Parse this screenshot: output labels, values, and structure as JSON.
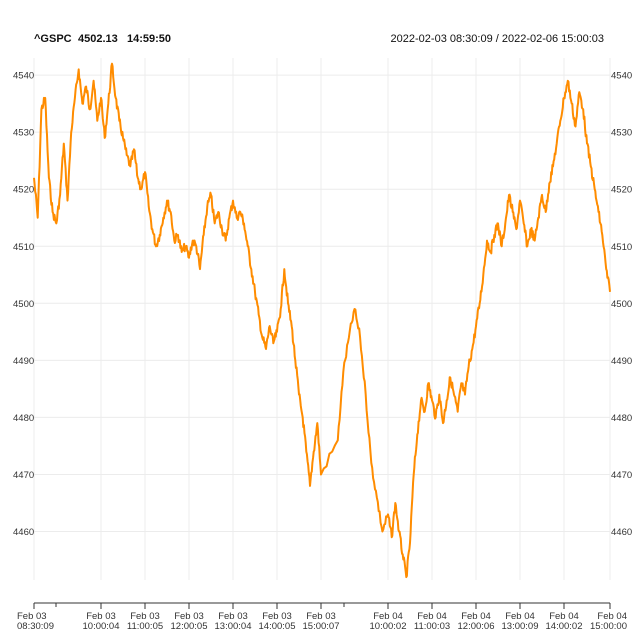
{
  "header": {
    "symbol": "^GSPC",
    "last_price": "4502.13",
    "last_time": "14:59:50",
    "date_range": "2022-02-03 08:30:09 / 2022-02-06 15:00:03"
  },
  "colors": {
    "series": "#ff8c00",
    "grid": "#ececec",
    "text": "#333333"
  },
  "chart_data": {
    "type": "line",
    "ylim": [
      4451.5,
      4543
    ],
    "yticks": [
      4460,
      4470,
      4480,
      4490,
      4500,
      4510,
      4520,
      4530,
      4540
    ],
    "grid": true,
    "xticks": [
      {
        "date": "Feb 03",
        "time": "08:30:09"
      },
      {
        "date": "Feb 03",
        "time": "10:00:04"
      },
      {
        "date": "Feb 03",
        "time": "11:00:05"
      },
      {
        "date": "Feb 03",
        "time": "12:00:05"
      },
      {
        "date": "Feb 03",
        "time": "13:00:04"
      },
      {
        "date": "Feb 03",
        "time": "14:00:05"
      },
      {
        "date": "Feb 03",
        "time": "15:00:07"
      },
      {
        "date": "Feb 04",
        "time": "10:00:02"
      },
      {
        "date": "Feb 04",
        "time": "11:00:03"
      },
      {
        "date": "Feb 04",
        "time": "12:00:06"
      },
      {
        "date": "Feb 04",
        "time": "13:00:09"
      },
      {
        "date": "Feb 04",
        "time": "14:00:02"
      },
      {
        "date": "Feb 04",
        "time": "15:00:00"
      }
    ],
    "series": [
      {
        "color": "#ff8c00",
        "points": [
          [
            "Feb 03 08:30",
            4522
          ],
          [
            "Feb 03 08:35",
            4515
          ],
          [
            "Feb 03 08:40",
            4534
          ],
          [
            "Feb 03 08:45",
            4536
          ],
          [
            "Feb 03 08:50",
            4522
          ],
          [
            "Feb 03 08:55",
            4516
          ],
          [
            "Feb 03 09:00",
            4514
          ],
          [
            "Feb 03 09:05",
            4519
          ],
          [
            "Feb 03 09:10",
            4528
          ],
          [
            "Feb 03 09:15",
            4518
          ],
          [
            "Feb 03 09:20",
            4530
          ],
          [
            "Feb 03 09:25",
            4536
          ],
          [
            "Feb 03 09:30",
            4541
          ],
          [
            "Feb 03 09:35",
            4535
          ],
          [
            "Feb 03 09:40",
            4538
          ],
          [
            "Feb 03 09:45",
            4534
          ],
          [
            "Feb 03 09:50",
            4539
          ],
          [
            "Feb 03 09:55",
            4532
          ],
          [
            "Feb 03 10:00",
            4536
          ],
          [
            "Feb 03 10:05",
            4529
          ],
          [
            "Feb 03 10:10",
            4535
          ],
          [
            "Feb 03 10:15",
            4542
          ],
          [
            "Feb 03 10:20",
            4536
          ],
          [
            "Feb 03 10:25",
            4532
          ],
          [
            "Feb 03 10:30",
            4529
          ],
          [
            "Feb 03 10:35",
            4526
          ],
          [
            "Feb 03 10:40",
            4524
          ],
          [
            "Feb 03 10:45",
            4527
          ],
          [
            "Feb 03 10:50",
            4522
          ],
          [
            "Feb 03 10:55",
            4520
          ],
          [
            "Feb 03 11:00",
            4523
          ],
          [
            "Feb 03 11:05",
            4517
          ],
          [
            "Feb 03 11:10",
            4513
          ],
          [
            "Feb 03 11:15",
            4510
          ],
          [
            "Feb 03 11:20",
            4512
          ],
          [
            "Feb 03 11:25",
            4515
          ],
          [
            "Feb 03 11:30",
            4518
          ],
          [
            "Feb 03 11:35",
            4516
          ],
          [
            "Feb 03 11:40",
            4511
          ],
          [
            "Feb 03 11:45",
            4512
          ],
          [
            "Feb 03 11:50",
            4509
          ],
          [
            "Feb 03 11:55",
            4510
          ],
          [
            "Feb 03 12:00",
            4508
          ],
          [
            "Feb 03 12:05",
            4511
          ],
          [
            "Feb 03 12:10",
            4510
          ],
          [
            "Feb 03 12:15",
            4506
          ],
          [
            "Feb 03 12:20",
            4512
          ],
          [
            "Feb 03 12:25",
            4517
          ],
          [
            "Feb 03 12:30",
            4519
          ],
          [
            "Feb 03 12:35",
            4514
          ],
          [
            "Feb 03 12:40",
            4516
          ],
          [
            "Feb 03 12:45",
            4513
          ],
          [
            "Feb 03 12:50",
            4511
          ],
          [
            "Feb 03 12:55",
            4515
          ],
          [
            "Feb 03 13:00",
            4518
          ],
          [
            "Feb 03 13:05",
            4515
          ],
          [
            "Feb 03 13:10",
            4516
          ],
          [
            "Feb 03 13:15",
            4514
          ],
          [
            "Feb 03 13:20",
            4510
          ],
          [
            "Feb 03 13:25",
            4506
          ],
          [
            "Feb 03 13:30",
            4502
          ],
          [
            "Feb 03 13:35",
            4498
          ],
          [
            "Feb 03 13:40",
            4494
          ],
          [
            "Feb 03 13:45",
            4492
          ],
          [
            "Feb 03 13:50",
            4496
          ],
          [
            "Feb 03 13:55",
            4493
          ],
          [
            "Feb 03 14:00",
            4495
          ],
          [
            "Feb 03 14:05",
            4499
          ],
          [
            "Feb 03 14:10",
            4506
          ],
          [
            "Feb 03 14:15",
            4500
          ],
          [
            "Feb 03 14:20",
            4496
          ],
          [
            "Feb 03 14:25",
            4490
          ],
          [
            "Feb 03 14:30",
            4484
          ],
          [
            "Feb 03 14:35",
            4480
          ],
          [
            "Feb 03 14:40",
            4474
          ],
          [
            "Feb 03 14:45",
            4468
          ],
          [
            "Feb 03 14:50",
            4474
          ],
          [
            "Feb 03 14:55",
            4479
          ],
          [
            "Feb 03 15:00",
            4470
          ],
          [
            "Feb 04 09:15",
            4476
          ],
          [
            "Feb 04 09:20",
            4488
          ],
          [
            "Feb 04 09:25",
            4494
          ],
          [
            "Feb 04 09:30",
            4499
          ],
          [
            "Feb 04 09:35",
            4494
          ],
          [
            "Feb 04 09:40",
            4484
          ],
          [
            "Feb 04 09:45",
            4472
          ],
          [
            "Feb 04 09:50",
            4466
          ],
          [
            "Feb 04 09:55",
            4460
          ],
          [
            "Feb 04 10:00",
            4463
          ],
          [
            "Feb 04 10:05",
            4459
          ],
          [
            "Feb 04 10:10",
            4465
          ],
          [
            "Feb 04 10:15",
            4460
          ],
          [
            "Feb 04 10:20",
            4456
          ],
          [
            "Feb 04 10:25",
            4452
          ],
          [
            "Feb 04 10:30",
            4458
          ],
          [
            "Feb 04 10:35",
            4470
          ],
          [
            "Feb 04 10:40",
            4477
          ],
          [
            "Feb 04 10:45",
            4483
          ],
          [
            "Feb 04 10:50",
            4481
          ],
          [
            "Feb 04 10:55",
            4486
          ],
          [
            "Feb 04 11:00",
            4483
          ],
          [
            "Feb 04 11:05",
            4480
          ],
          [
            "Feb 04 11:10",
            4484
          ],
          [
            "Feb 04 11:15",
            4479
          ],
          [
            "Feb 04 11:20",
            4483
          ],
          [
            "Feb 04 11:25",
            4487
          ],
          [
            "Feb 04 11:30",
            4484
          ],
          [
            "Feb 04 11:35",
            4481
          ],
          [
            "Feb 04 11:40",
            4486
          ],
          [
            "Feb 04 11:45",
            4484
          ],
          [
            "Feb 04 11:50",
            4489
          ],
          [
            "Feb 04 11:55",
            4492
          ],
          [
            "Feb 04 12:00",
            4496
          ],
          [
            "Feb 04 12:05",
            4500
          ],
          [
            "Feb 04 12:10",
            4505
          ],
          [
            "Feb 04 12:15",
            4511
          ],
          [
            "Feb 04 12:20",
            4509
          ],
          [
            "Feb 04 12:25",
            4512
          ],
          [
            "Feb 04 12:30",
            4514
          ],
          [
            "Feb 04 12:35",
            4510
          ],
          [
            "Feb 04 12:40",
            4514
          ],
          [
            "Feb 04 12:45",
            4519
          ],
          [
            "Feb 04 12:50",
            4516
          ],
          [
            "Feb 04 12:55",
            4513
          ],
          [
            "Feb 04 13:00",
            4518
          ],
          [
            "Feb 04 13:05",
            4514
          ],
          [
            "Feb 04 13:10",
            4510
          ],
          [
            "Feb 04 13:15",
            4513
          ],
          [
            "Feb 04 13:20",
            4511
          ],
          [
            "Feb 04 13:25",
            4515
          ],
          [
            "Feb 04 13:30",
            4519
          ],
          [
            "Feb 04 13:35",
            4516
          ],
          [
            "Feb 04 13:40",
            4521
          ],
          [
            "Feb 04 13:45",
            4524
          ],
          [
            "Feb 04 13:50",
            4528
          ],
          [
            "Feb 04 13:55",
            4532
          ],
          [
            "Feb 04 14:00",
            4536
          ],
          [
            "Feb 04 14:05",
            4539
          ],
          [
            "Feb 04 14:10",
            4535
          ],
          [
            "Feb 04 14:15",
            4531
          ],
          [
            "Feb 04 14:20",
            4537
          ],
          [
            "Feb 04 14:25",
            4534
          ],
          [
            "Feb 04 14:30",
            4528
          ],
          [
            "Feb 04 14:35",
            4524
          ],
          [
            "Feb 04 14:40",
            4520
          ],
          [
            "Feb 04 14:45",
            4516
          ],
          [
            "Feb 04 14:50",
            4512
          ],
          [
            "Feb 04 14:55",
            4506
          ],
          [
            "Feb 04 15:00",
            4502
          ]
        ]
      }
    ]
  }
}
